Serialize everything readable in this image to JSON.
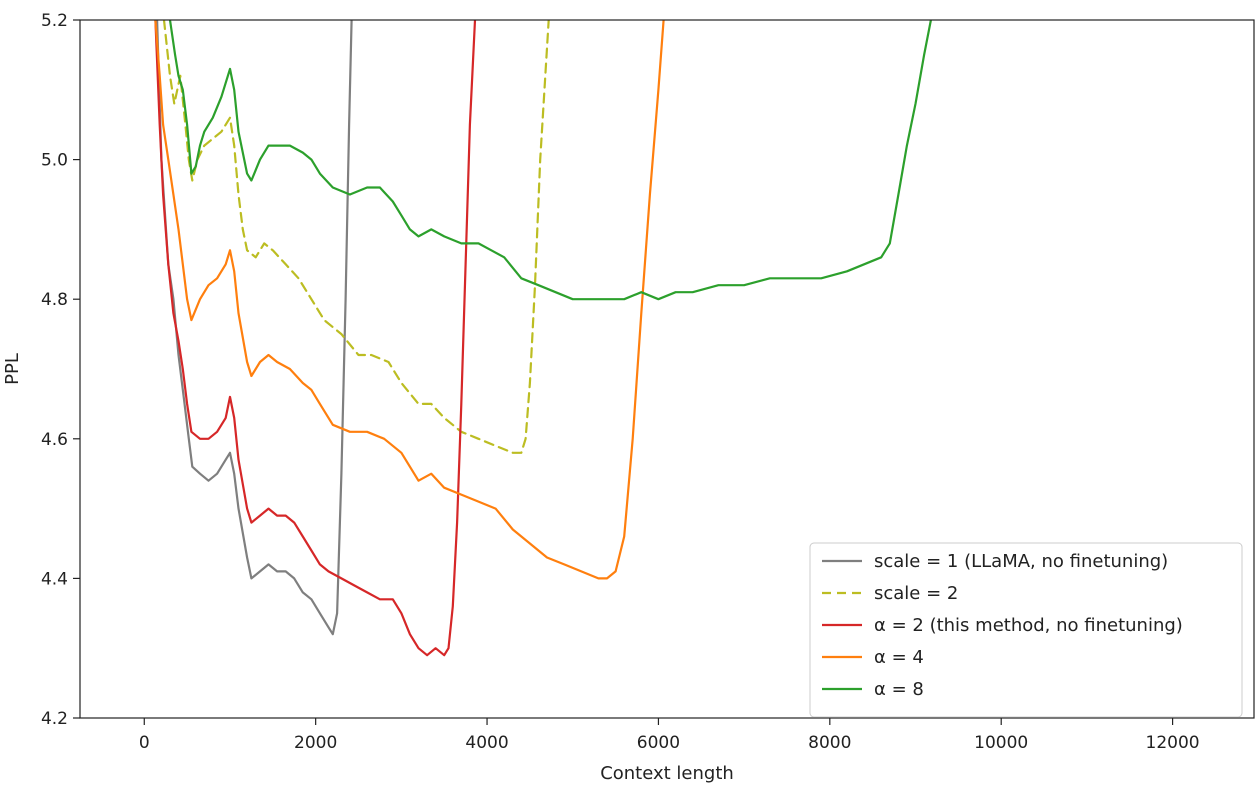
{
  "chart_data": {
    "type": "line",
    "title": "",
    "xlabel": "Context length",
    "ylabel": "PPL",
    "xlim": [
      -750,
      12950
    ],
    "ylim": [
      4.2,
      5.2
    ],
    "x_ticks": [
      0,
      2000,
      4000,
      6000,
      8000,
      10000,
      12000
    ],
    "x_tick_labels": [
      "0",
      "2000",
      "4000",
      "6000",
      "8000",
      "10000",
      "12000"
    ],
    "y_ticks": [
      4.2,
      4.4,
      4.6,
      4.8,
      5.0,
      5.2
    ],
    "y_tick_labels": [
      "4.2",
      "4.4",
      "4.6",
      "4.8",
      "5.0",
      "5.2"
    ],
    "grid": false,
    "legend_position": "bottom-right",
    "series": [
      {
        "name": "scale = 1 (LLaMA, no finetuning)",
        "color": "#7f7f7f",
        "dash": "solid",
        "points": [
          [
            150,
            5.2
          ],
          [
            200,
            5.0
          ],
          [
            280,
            4.85
          ],
          [
            340,
            4.8
          ],
          [
            400,
            4.72
          ],
          [
            460,
            4.66
          ],
          [
            520,
            4.6
          ],
          [
            560,
            4.56
          ],
          [
            650,
            4.55
          ],
          [
            750,
            4.54
          ],
          [
            850,
            4.55
          ],
          [
            950,
            4.57
          ],
          [
            1000,
            4.58
          ],
          [
            1050,
            4.55
          ],
          [
            1100,
            4.5
          ],
          [
            1200,
            4.43
          ],
          [
            1250,
            4.4
          ],
          [
            1350,
            4.41
          ],
          [
            1450,
            4.42
          ],
          [
            1550,
            4.41
          ],
          [
            1650,
            4.41
          ],
          [
            1750,
            4.4
          ],
          [
            1850,
            4.38
          ],
          [
            1950,
            4.37
          ],
          [
            2050,
            4.35
          ],
          [
            2150,
            4.33
          ],
          [
            2200,
            4.32
          ],
          [
            2250,
            4.35
          ],
          [
            2300,
            4.55
          ],
          [
            2350,
            4.8
          ],
          [
            2390,
            5.05
          ],
          [
            2420,
            5.2
          ]
        ]
      },
      {
        "name": "scale = 2",
        "color": "#bcbd22",
        "dash": "dashed",
        "points": [
          [
            230,
            5.2
          ],
          [
            300,
            5.12
          ],
          [
            350,
            5.08
          ],
          [
            420,
            5.12
          ],
          [
            480,
            5.05
          ],
          [
            520,
            5.0
          ],
          [
            560,
            4.97
          ],
          [
            620,
            5.0
          ],
          [
            700,
            5.02
          ],
          [
            800,
            5.03
          ],
          [
            900,
            5.04
          ],
          [
            950,
            5.05
          ],
          [
            1000,
            5.06
          ],
          [
            1050,
            5.02
          ],
          [
            1100,
            4.95
          ],
          [
            1150,
            4.9
          ],
          [
            1200,
            4.87
          ],
          [
            1300,
            4.86
          ],
          [
            1400,
            4.88
          ],
          [
            1500,
            4.87
          ],
          [
            1650,
            4.85
          ],
          [
            1800,
            4.83
          ],
          [
            1900,
            4.81
          ],
          [
            2000,
            4.79
          ],
          [
            2100,
            4.77
          ],
          [
            2300,
            4.75
          ],
          [
            2500,
            4.72
          ],
          [
            2650,
            4.72
          ],
          [
            2850,
            4.71
          ],
          [
            3000,
            4.68
          ],
          [
            3200,
            4.65
          ],
          [
            3350,
            4.65
          ],
          [
            3500,
            4.63
          ],
          [
            3700,
            4.61
          ],
          [
            3900,
            4.6
          ],
          [
            4100,
            4.59
          ],
          [
            4300,
            4.58
          ],
          [
            4400,
            4.58
          ],
          [
            4450,
            4.6
          ],
          [
            4500,
            4.68
          ],
          [
            4560,
            4.82
          ],
          [
            4620,
            5.0
          ],
          [
            4680,
            5.12
          ],
          [
            4720,
            5.2
          ]
        ]
      },
      {
        "name": "α = 2 (this method, no finetuning)",
        "color": "#d62728",
        "dash": "solid",
        "points": [
          [
            130,
            5.2
          ],
          [
            180,
            5.05
          ],
          [
            220,
            4.95
          ],
          [
            280,
            4.85
          ],
          [
            340,
            4.78
          ],
          [
            400,
            4.74
          ],
          [
            450,
            4.7
          ],
          [
            500,
            4.65
          ],
          [
            550,
            4.61
          ],
          [
            650,
            4.6
          ],
          [
            750,
            4.6
          ],
          [
            850,
            4.61
          ],
          [
            950,
            4.63
          ],
          [
            1000,
            4.66
          ],
          [
            1050,
            4.63
          ],
          [
            1100,
            4.57
          ],
          [
            1200,
            4.5
          ],
          [
            1250,
            4.48
          ],
          [
            1350,
            4.49
          ],
          [
            1450,
            4.5
          ],
          [
            1550,
            4.49
          ],
          [
            1650,
            4.49
          ],
          [
            1750,
            4.48
          ],
          [
            1850,
            4.46
          ],
          [
            1950,
            4.44
          ],
          [
            2050,
            4.42
          ],
          [
            2150,
            4.41
          ],
          [
            2300,
            4.4
          ],
          [
            2450,
            4.39
          ],
          [
            2600,
            4.38
          ],
          [
            2750,
            4.37
          ],
          [
            2900,
            4.37
          ],
          [
            3000,
            4.35
          ],
          [
            3100,
            4.32
          ],
          [
            3200,
            4.3
          ],
          [
            3300,
            4.29
          ],
          [
            3400,
            4.3
          ],
          [
            3500,
            4.29
          ],
          [
            3550,
            4.3
          ],
          [
            3600,
            4.36
          ],
          [
            3650,
            4.48
          ],
          [
            3700,
            4.65
          ],
          [
            3750,
            4.85
          ],
          [
            3800,
            5.05
          ],
          [
            3860,
            5.2
          ]
        ]
      },
      {
        "name": "α = 4",
        "color": "#ff7f0e",
        "dash": "solid",
        "points": [
          [
            130,
            5.2
          ],
          [
            180,
            5.12
          ],
          [
            220,
            5.05
          ],
          [
            280,
            5.0
          ],
          [
            340,
            4.95
          ],
          [
            400,
            4.9
          ],
          [
            450,
            4.85
          ],
          [
            500,
            4.8
          ],
          [
            550,
            4.77
          ],
          [
            650,
            4.8
          ],
          [
            750,
            4.82
          ],
          [
            850,
            4.83
          ],
          [
            950,
            4.85
          ],
          [
            1000,
            4.87
          ],
          [
            1050,
            4.84
          ],
          [
            1100,
            4.78
          ],
          [
            1200,
            4.71
          ],
          [
            1250,
            4.69
          ],
          [
            1350,
            4.71
          ],
          [
            1450,
            4.72
          ],
          [
            1550,
            4.71
          ],
          [
            1700,
            4.7
          ],
          [
            1850,
            4.68
          ],
          [
            1950,
            4.67
          ],
          [
            2050,
            4.65
          ],
          [
            2200,
            4.62
          ],
          [
            2400,
            4.61
          ],
          [
            2600,
            4.61
          ],
          [
            2800,
            4.6
          ],
          [
            3000,
            4.58
          ],
          [
            3200,
            4.54
          ],
          [
            3350,
            4.55
          ],
          [
            3500,
            4.53
          ],
          [
            3700,
            4.52
          ],
          [
            3900,
            4.51
          ],
          [
            4100,
            4.5
          ],
          [
            4300,
            4.47
          ],
          [
            4500,
            4.45
          ],
          [
            4700,
            4.43
          ],
          [
            4900,
            4.42
          ],
          [
            5100,
            4.41
          ],
          [
            5300,
            4.4
          ],
          [
            5400,
            4.4
          ],
          [
            5500,
            4.41
          ],
          [
            5600,
            4.46
          ],
          [
            5700,
            4.6
          ],
          [
            5800,
            4.78
          ],
          [
            5900,
            4.95
          ],
          [
            6000,
            5.1
          ],
          [
            6060,
            5.2
          ]
        ]
      },
      {
        "name": "α = 8",
        "color": "#2ca02c",
        "dash": "solid",
        "points": [
          [
            300,
            5.2
          ],
          [
            360,
            5.15
          ],
          [
            400,
            5.12
          ],
          [
            450,
            5.1
          ],
          [
            500,
            5.05
          ],
          [
            550,
            4.98
          ],
          [
            600,
            4.99
          ],
          [
            650,
            5.02
          ],
          [
            700,
            5.04
          ],
          [
            800,
            5.06
          ],
          [
            900,
            5.09
          ],
          [
            1000,
            5.13
          ],
          [
            1050,
            5.1
          ],
          [
            1100,
            5.04
          ],
          [
            1200,
            4.98
          ],
          [
            1250,
            4.97
          ],
          [
            1350,
            5.0
          ],
          [
            1450,
            5.02
          ],
          [
            1550,
            5.02
          ],
          [
            1700,
            5.02
          ],
          [
            1850,
            5.01
          ],
          [
            1950,
            5.0
          ],
          [
            2050,
            4.98
          ],
          [
            2200,
            4.96
          ],
          [
            2400,
            4.95
          ],
          [
            2600,
            4.96
          ],
          [
            2750,
            4.96
          ],
          [
            2900,
            4.94
          ],
          [
            3000,
            4.92
          ],
          [
            3100,
            4.9
          ],
          [
            3200,
            4.89
          ],
          [
            3350,
            4.9
          ],
          [
            3500,
            4.89
          ],
          [
            3700,
            4.88
          ],
          [
            3900,
            4.88
          ],
          [
            4050,
            4.87
          ],
          [
            4200,
            4.86
          ],
          [
            4400,
            4.83
          ],
          [
            4600,
            4.82
          ],
          [
            4800,
            4.81
          ],
          [
            5000,
            4.8
          ],
          [
            5200,
            4.8
          ],
          [
            5400,
            4.8
          ],
          [
            5600,
            4.8
          ],
          [
            5800,
            4.81
          ],
          [
            6000,
            4.8
          ],
          [
            6200,
            4.81
          ],
          [
            6400,
            4.81
          ],
          [
            6700,
            4.82
          ],
          [
            7000,
            4.82
          ],
          [
            7300,
            4.83
          ],
          [
            7600,
            4.83
          ],
          [
            7900,
            4.83
          ],
          [
            8200,
            4.84
          ],
          [
            8400,
            4.85
          ],
          [
            8600,
            4.86
          ],
          [
            8700,
            4.88
          ],
          [
            8800,
            4.95
          ],
          [
            8900,
            5.02
          ],
          [
            9000,
            5.08
          ],
          [
            9100,
            5.15
          ],
          [
            9180,
            5.2
          ]
        ]
      }
    ]
  }
}
